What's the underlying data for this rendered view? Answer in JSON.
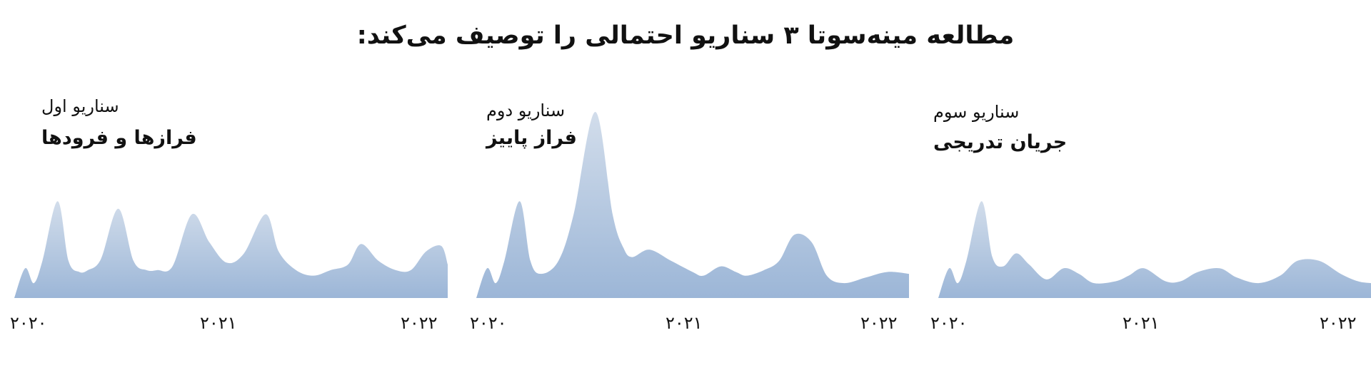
{
  "title": "مطالعه مینه‌سوتا ۳ سناریو احتمالی را توصیف می‌کند:",
  "colors": {
    "area_top": "#d2ddeb",
    "area_bottom": "#9cb6d7"
  },
  "chart_data": [
    {
      "type": "area",
      "subtitle": "سناریو اول",
      "name": "فرازها و فرودها",
      "x_ticks": [
        "۲۰۲۰",
        "۲۰۲۱",
        "۲۰۲۲"
      ],
      "xlim": [
        2020.0,
        2022.0
      ],
      "ylim": [
        0,
        1
      ],
      "x": [
        2020.0,
        2020.05,
        2020.09,
        2020.13,
        2020.2,
        2020.25,
        2020.3,
        2020.34,
        2020.4,
        2020.48,
        2020.55,
        2020.61,
        2020.66,
        2020.73,
        2020.82,
        2020.9,
        2020.98,
        2021.06,
        2021.16,
        2021.22,
        2021.3,
        2021.38,
        2021.46,
        2021.54,
        2021.6,
        2021.68,
        2021.76,
        2021.83,
        2021.9,
        2021.97,
        2022.0
      ],
      "values": [
        0.0,
        0.16,
        0.08,
        0.2,
        0.52,
        0.2,
        0.14,
        0.15,
        0.21,
        0.48,
        0.2,
        0.15,
        0.15,
        0.17,
        0.45,
        0.3,
        0.19,
        0.24,
        0.45,
        0.25,
        0.15,
        0.12,
        0.15,
        0.18,
        0.29,
        0.2,
        0.15,
        0.15,
        0.25,
        0.28,
        0.18
      ]
    },
    {
      "type": "area",
      "subtitle": "سناریو دوم",
      "name": "فراز پاییز",
      "x_ticks": [
        "۲۰۲۰",
        "۲۰۲۱",
        "۲۰۲۲"
      ],
      "xlim": [
        2020.0,
        2022.0
      ],
      "ylim": [
        0,
        1
      ],
      "x": [
        2020.0,
        2020.05,
        2020.09,
        2020.13,
        2020.2,
        2020.25,
        2020.3,
        2020.38,
        2020.45,
        2020.55,
        2020.63,
        2020.68,
        2020.72,
        2020.8,
        2020.9,
        2021.0,
        2021.05,
        2021.13,
        2021.2,
        2021.25,
        2021.33,
        2021.4,
        2021.47,
        2021.55,
        2021.62,
        2021.7,
        2021.8,
        2021.9,
        2022.0
      ],
      "values": [
        0.0,
        0.16,
        0.08,
        0.2,
        0.52,
        0.2,
        0.13,
        0.2,
        0.45,
        1.0,
        0.45,
        0.27,
        0.22,
        0.26,
        0.2,
        0.14,
        0.12,
        0.17,
        0.14,
        0.12,
        0.15,
        0.2,
        0.34,
        0.3,
        0.12,
        0.08,
        0.11,
        0.14,
        0.13
      ]
    },
    {
      "type": "area",
      "subtitle": "سناریو سوم",
      "name": "جریان تدریجی",
      "x_ticks": [
        "۲۰۲۰",
        "۲۰۲۱",
        "۲۰۲۲"
      ],
      "xlim": [
        2020.0,
        2022.0
      ],
      "ylim": [
        0,
        1
      ],
      "x": [
        2020.0,
        2020.05,
        2020.09,
        2020.13,
        2020.2,
        2020.25,
        2020.3,
        2020.36,
        2020.42,
        2020.5,
        2020.58,
        2020.65,
        2020.72,
        2020.82,
        2020.88,
        2020.95,
        2021.05,
        2021.12,
        2021.2,
        2021.3,
        2021.38,
        2021.48,
        2021.58,
        2021.66,
        2021.76,
        2021.86,
        2021.94,
        2022.0
      ],
      "values": [
        0.0,
        0.16,
        0.08,
        0.2,
        0.52,
        0.22,
        0.17,
        0.24,
        0.18,
        0.1,
        0.16,
        0.13,
        0.08,
        0.09,
        0.12,
        0.16,
        0.09,
        0.09,
        0.14,
        0.16,
        0.11,
        0.08,
        0.12,
        0.2,
        0.2,
        0.13,
        0.09,
        0.08
      ]
    }
  ]
}
